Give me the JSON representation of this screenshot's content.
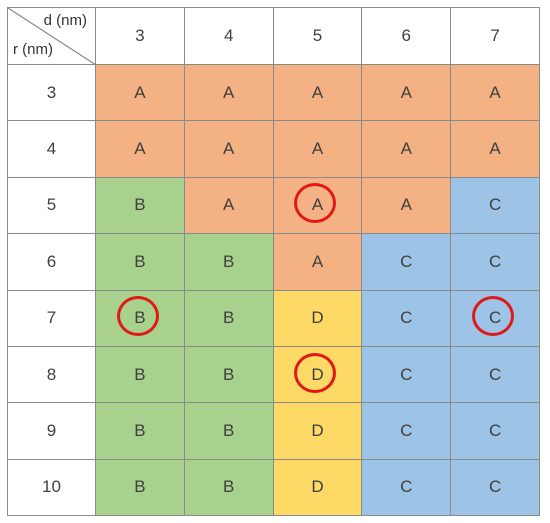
{
  "table": {
    "corner": {
      "col_label": "d (nm)",
      "row_label": "r (nm)"
    },
    "columns": [
      "3",
      "4",
      "5",
      "6",
      "7"
    ],
    "rows": [
      {
        "r": "3",
        "cells": [
          "A",
          "A",
          "A",
          "A",
          "A"
        ]
      },
      {
        "r": "4",
        "cells": [
          "A",
          "A",
          "A",
          "A",
          "A"
        ]
      },
      {
        "r": "5",
        "cells": [
          "B",
          "A",
          "A",
          "A",
          "C"
        ]
      },
      {
        "r": "6",
        "cells": [
          "B",
          "B",
          "A",
          "C",
          "C"
        ]
      },
      {
        "r": "7",
        "cells": [
          "B",
          "B",
          "D",
          "C",
          "C"
        ]
      },
      {
        "r": "8",
        "cells": [
          "B",
          "B",
          "D",
          "C",
          "C"
        ]
      },
      {
        "r": "9",
        "cells": [
          "B",
          "B",
          "D",
          "C",
          "C"
        ]
      },
      {
        "r": "10",
        "cells": [
          "B",
          "B",
          "D",
          "C",
          "C"
        ]
      }
    ],
    "circled": [
      {
        "r": "5",
        "d": "5"
      },
      {
        "r": "7",
        "d": "3"
      },
      {
        "r": "7",
        "d": "7"
      },
      {
        "r": "8",
        "d": "5"
      }
    ]
  },
  "colors": {
    "A": "#f4b183",
    "B": "#a9d18e",
    "C": "#9dc3e6",
    "D": "#ffd966",
    "circle": "#e11818"
  }
}
